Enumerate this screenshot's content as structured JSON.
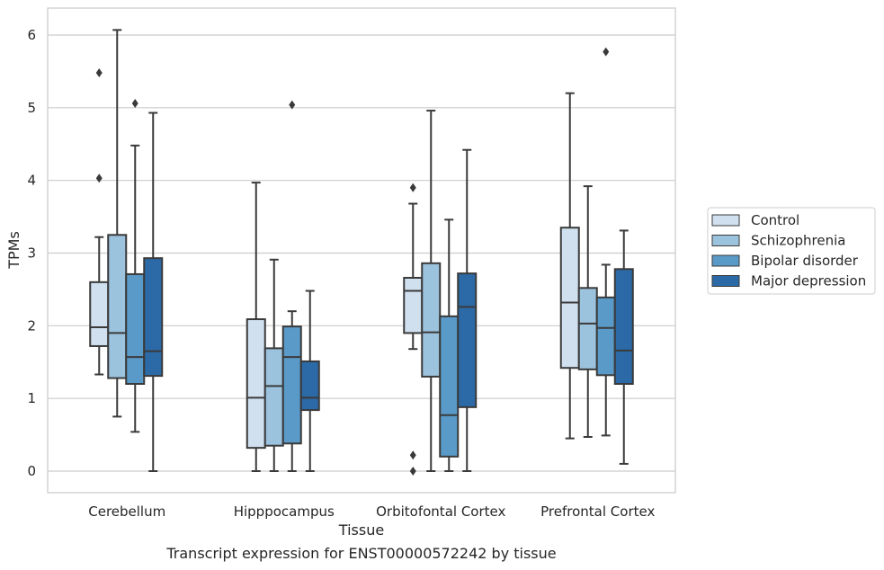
{
  "chart_data": {
    "type": "box",
    "caption": "Transcript expression for ENST00000572242 by tissue",
    "xlabel": "Tissue",
    "ylabel": "TPMs",
    "ylim": [
      -0.3,
      6.35
    ],
    "yticks": [
      0,
      1,
      2,
      3,
      4,
      5,
      6
    ],
    "grid": true,
    "legend_position": "right",
    "categories": [
      "Cerebellum",
      "Hipppocampus",
      "Orbitofontal Cortex",
      "Prefrontal Cortex"
    ],
    "series": [
      {
        "name": "Control",
        "color": "#d0e0ef",
        "boxes": [
          {
            "whislo": 1.33,
            "q1": 1.72,
            "med": 1.98,
            "q3": 2.6,
            "whishi": 3.22,
            "fliers": [
              4.03,
              5.48
            ]
          },
          {
            "whislo": 0.0,
            "q1": 0.32,
            "med": 1.01,
            "q3": 2.09,
            "whishi": 3.97,
            "fliers": []
          },
          {
            "whislo": 1.68,
            "q1": 1.9,
            "med": 2.48,
            "q3": 2.66,
            "whishi": 3.68,
            "fliers": [
              3.9,
              0.22,
              0.0
            ]
          },
          {
            "whislo": 0.45,
            "q1": 1.42,
            "med": 2.32,
            "q3": 3.35,
            "whishi": 5.2,
            "fliers": []
          }
        ]
      },
      {
        "name": "Schizophrenia",
        "color": "#9cc3de",
        "boxes": [
          {
            "whislo": 0.75,
            "q1": 1.28,
            "med": 1.9,
            "q3": 3.25,
            "whishi": 6.07,
            "fliers": []
          },
          {
            "whislo": 0.0,
            "q1": 0.35,
            "med": 1.17,
            "q3": 1.69,
            "whishi": 2.91,
            "fliers": []
          },
          {
            "whislo": 0.0,
            "q1": 1.3,
            "med": 1.91,
            "q3": 2.86,
            "whishi": 4.96,
            "fliers": []
          },
          {
            "whislo": 0.47,
            "q1": 1.4,
            "med": 2.03,
            "q3": 2.52,
            "whishi": 3.92,
            "fliers": []
          }
        ]
      },
      {
        "name": "Bipolar disorder",
        "color": "#5a9ac8",
        "boxes": [
          {
            "whislo": 0.54,
            "q1": 1.2,
            "med": 1.57,
            "q3": 2.71,
            "whishi": 4.48,
            "fliers": [
              5.06
            ]
          },
          {
            "whislo": 0.0,
            "q1": 0.38,
            "med": 1.57,
            "q3": 1.99,
            "whishi": 2.2,
            "fliers": [
              5.04
            ]
          },
          {
            "whislo": 0.0,
            "q1": 0.2,
            "med": 0.77,
            "q3": 2.13,
            "whishi": 3.46,
            "fliers": []
          },
          {
            "whislo": 0.49,
            "q1": 1.32,
            "med": 1.97,
            "q3": 2.39,
            "whishi": 2.84,
            "fliers": [
              5.77
            ]
          }
        ]
      },
      {
        "name": "Major depression",
        "color": "#2b6aa6",
        "boxes": [
          {
            "whislo": 0.0,
            "q1": 1.31,
            "med": 1.65,
            "q3": 2.93,
            "whishi": 4.93,
            "fliers": []
          },
          {
            "whislo": 0.0,
            "q1": 0.84,
            "med": 1.01,
            "q3": 1.51,
            "whishi": 2.48,
            "fliers": []
          },
          {
            "whislo": 0.0,
            "q1": 0.88,
            "med": 2.26,
            "q3": 2.72,
            "whishi": 4.42,
            "fliers": []
          },
          {
            "whislo": 0.1,
            "q1": 1.2,
            "med": 1.66,
            "q3": 2.78,
            "whishi": 3.31,
            "fliers": []
          }
        ]
      }
    ]
  }
}
